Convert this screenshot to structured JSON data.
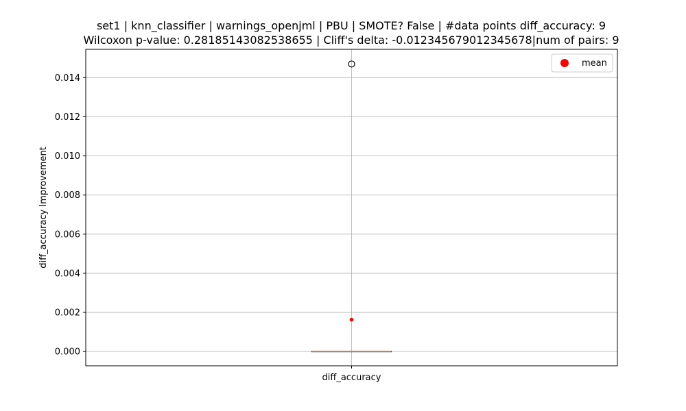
{
  "chart_data": {
    "type": "box",
    "title_line1": "set1 | knn_classifier | warnings_openjml | PBU | SMOTE? False | #data points diff_accuracy: 9",
    "title_line2": "Wilcoxon p-value: 0.28185143082538655 | Cliff's delta: -0.012345679012345678|num of pairs: 9",
    "ylabel": "diff_accuracy Improvement",
    "xlabel": "",
    "categories": [
      "diff_accuracy"
    ],
    "ylim": [
      -0.00073,
      0.01545
    ],
    "yticks": [
      "0.000",
      "0.002",
      "0.004",
      "0.006",
      "0.008",
      "0.010",
      "0.012",
      "0.014"
    ],
    "ytick_values": [
      0,
      0.002,
      0.004,
      0.006,
      0.008,
      0.01,
      0.012,
      0.014
    ],
    "grid": true,
    "box": {
      "q1": 0,
      "median": 0,
      "q3": 0,
      "whisker_low": 0,
      "whisker_high": 0
    },
    "outliers": [
      0.0147
    ],
    "mean": 0.00163,
    "legend": {
      "position": "top-right",
      "entries": [
        {
          "label": "mean",
          "color": "#ff0000"
        }
      ]
    },
    "colors": {
      "median": "#e8883a",
      "mean": "#ff0000",
      "grid": "#b0b0b0"
    }
  }
}
